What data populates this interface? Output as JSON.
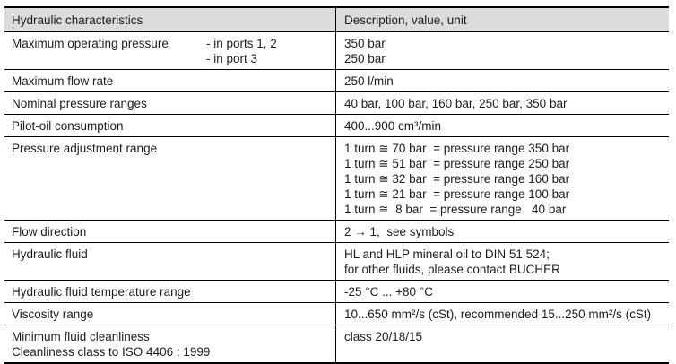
{
  "table": {
    "header": {
      "col1": "Hydraulic characteristics",
      "col2": "Description, value, unit"
    },
    "rows": [
      {
        "label": "Maximum operating pressure",
        "sublabels": [
          "- in ports 1, 2",
          "- in port 3"
        ],
        "values": [
          "350 bar",
          "250 bar"
        ]
      },
      {
        "label": "Maximum flow rate",
        "values": [
          "250 l/min"
        ]
      },
      {
        "label": "Nominal pressure ranges",
        "values": [
          "40 bar, 100 bar, 160 bar, 250 bar, 350 bar"
        ]
      },
      {
        "label": "Pilot-oil consumption",
        "values": [
          "400...900 cm³/min"
        ]
      },
      {
        "label": "Pressure adjustment range",
        "values": [
          "1 turn ≅ 70 bar  = pressure range 350 bar",
          "1 turn ≅ 51 bar  = pressure range 250 bar",
          "1 turn ≅ 32 bar  = pressure range 160 bar",
          "1 turn ≅ 21 bar  = pressure range 100 bar",
          "1 turn ≅  8 bar  = pressure range   40 bar"
        ]
      },
      {
        "label": "Flow direction",
        "values": [
          "2 → 1,  see symbols"
        ]
      },
      {
        "label": "Hydraulic fluid",
        "values": [
          "HL and HLP mineral oil to DIN 51 524;",
          "for other fluids, please contact BUCHER"
        ]
      },
      {
        "label": "Hydraulic fluid temperature range",
        "values": [
          "-25 °C ... +80 °C"
        ]
      },
      {
        "label": "Viscosity range",
        "values": [
          "10...650 mm²/s (cSt), recommended 15...250 mm²/s (cSt)"
        ]
      },
      {
        "label": "Minimum fluid cleanliness",
        "label2": "Cleanliness class to ISO 4406 : 1999",
        "values": [
          "class 20/18/15"
        ]
      }
    ]
  }
}
